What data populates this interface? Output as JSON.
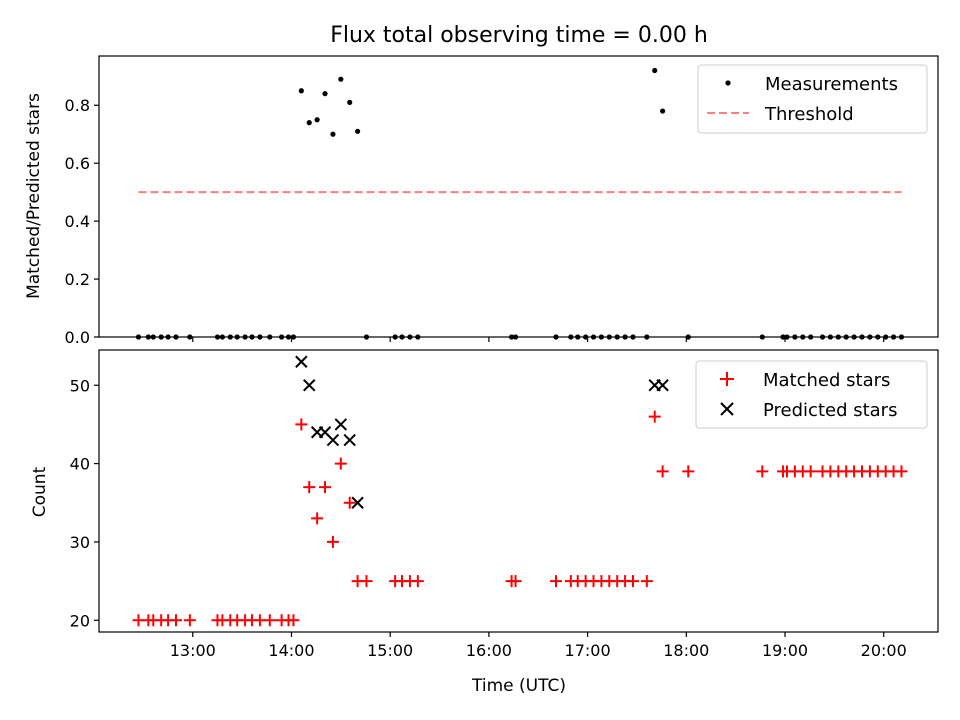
{
  "chart_data": [
    {
      "type": "scatter",
      "title": "Flux total observing time = 0.00 h",
      "xlabel": "",
      "ylabel": "Matched/Predicted stars",
      "ylim": [
        0,
        0.97
      ],
      "xlim": [
        12.05,
        20.55
      ],
      "y_ticks": [
        "0.0",
        "0.2",
        "0.4",
        "0.6",
        "0.8"
      ],
      "legend": "top-right",
      "series": [
        {
          "name": "Measurements",
          "marker": "dot",
          "color": "#000000",
          "points": [
            [
              12.45,
              0
            ],
            [
              12.55,
              0
            ],
            [
              12.6,
              0
            ],
            [
              12.68,
              0
            ],
            [
              12.75,
              0
            ],
            [
              12.83,
              0
            ],
            [
              12.97,
              0
            ],
            [
              13.25,
              0
            ],
            [
              13.3,
              0
            ],
            [
              13.38,
              0
            ],
            [
              13.45,
              0
            ],
            [
              13.53,
              0
            ],
            [
              13.6,
              0
            ],
            [
              13.68,
              0
            ],
            [
              13.78,
              0
            ],
            [
              13.9,
              0
            ],
            [
              13.97,
              0
            ],
            [
              14.02,
              0
            ],
            [
              14.1,
              0.85
            ],
            [
              14.18,
              0.74
            ],
            [
              14.26,
              0.75
            ],
            [
              14.34,
              0.84
            ],
            [
              14.42,
              0.7
            ],
            [
              14.5,
              0.89
            ],
            [
              14.59,
              0.81
            ],
            [
              14.67,
              0.71
            ],
            [
              14.76,
              0
            ],
            [
              15.05,
              0
            ],
            [
              15.12,
              0
            ],
            [
              15.2,
              0
            ],
            [
              15.28,
              0
            ],
            [
              16.23,
              0
            ],
            [
              16.27,
              0
            ],
            [
              16.68,
              0
            ],
            [
              16.83,
              0
            ],
            [
              16.9,
              0
            ],
            [
              16.98,
              0
            ],
            [
              17.06,
              0
            ],
            [
              17.14,
              0
            ],
            [
              17.22,
              0
            ],
            [
              17.3,
              0
            ],
            [
              17.38,
              0
            ],
            [
              17.46,
              0
            ],
            [
              17.6,
              0
            ],
            [
              17.68,
              0.92
            ],
            [
              17.76,
              0.78
            ],
            [
              18.02,
              0
            ],
            [
              18.77,
              0
            ],
            [
              18.98,
              0
            ],
            [
              19.02,
              0
            ],
            [
              19.1,
              0
            ],
            [
              19.18,
              0
            ],
            [
              19.26,
              0
            ],
            [
              19.38,
              0
            ],
            [
              19.46,
              0
            ],
            [
              19.54,
              0
            ],
            [
              19.62,
              0
            ],
            [
              19.7,
              0
            ],
            [
              19.78,
              0
            ],
            [
              19.86,
              0
            ],
            [
              19.94,
              0
            ],
            [
              20.02,
              0
            ],
            [
              20.1,
              0
            ],
            [
              20.18,
              0
            ]
          ]
        },
        {
          "name": "Threshold",
          "marker": "dashed-line",
          "color": "#ff7f7f",
          "points": [
            [
              12.45,
              0.5
            ],
            [
              20.18,
              0.5
            ]
          ]
        }
      ]
    },
    {
      "type": "scatter",
      "title": "",
      "xlabel": "Time (UTC)",
      "ylabel": "Count",
      "ylim": [
        18.5,
        54.5
      ],
      "xlim": [
        12.05,
        20.55
      ],
      "y_ticks": [
        "20",
        "30",
        "40",
        "50"
      ],
      "x_ticks": [
        "13:00",
        "14:00",
        "15:00",
        "16:00",
        "17:00",
        "18:00",
        "19:00",
        "20:00"
      ],
      "legend": "top-right",
      "series": [
        {
          "name": "Matched stars",
          "marker": "plus",
          "color": "#ff0000",
          "points": [
            [
              12.45,
              20
            ],
            [
              12.55,
              20
            ],
            [
              12.6,
              20
            ],
            [
              12.68,
              20
            ],
            [
              12.75,
              20
            ],
            [
              12.83,
              20
            ],
            [
              12.97,
              20
            ],
            [
              13.25,
              20
            ],
            [
              13.3,
              20
            ],
            [
              13.38,
              20
            ],
            [
              13.45,
              20
            ],
            [
              13.53,
              20
            ],
            [
              13.6,
              20
            ],
            [
              13.68,
              20
            ],
            [
              13.78,
              20
            ],
            [
              13.9,
              20
            ],
            [
              13.97,
              20
            ],
            [
              14.02,
              20
            ],
            [
              14.1,
              45
            ],
            [
              14.18,
              37
            ],
            [
              14.26,
              33
            ],
            [
              14.34,
              37
            ],
            [
              14.42,
              30
            ],
            [
              14.5,
              40
            ],
            [
              14.59,
              35
            ],
            [
              14.67,
              25
            ],
            [
              14.76,
              25
            ],
            [
              15.05,
              25
            ],
            [
              15.12,
              25
            ],
            [
              15.2,
              25
            ],
            [
              15.28,
              25
            ],
            [
              16.23,
              25
            ],
            [
              16.27,
              25
            ],
            [
              16.68,
              25
            ],
            [
              16.83,
              25
            ],
            [
              16.9,
              25
            ],
            [
              16.98,
              25
            ],
            [
              17.06,
              25
            ],
            [
              17.14,
              25
            ],
            [
              17.22,
              25
            ],
            [
              17.3,
              25
            ],
            [
              17.38,
              25
            ],
            [
              17.46,
              25
            ],
            [
              17.6,
              25
            ],
            [
              17.68,
              46
            ],
            [
              17.76,
              39
            ],
            [
              18.02,
              39
            ],
            [
              18.77,
              39
            ],
            [
              18.98,
              39
            ],
            [
              19.02,
              39
            ],
            [
              19.1,
              39
            ],
            [
              19.18,
              39
            ],
            [
              19.26,
              39
            ],
            [
              19.38,
              39
            ],
            [
              19.46,
              39
            ],
            [
              19.54,
              39
            ],
            [
              19.62,
              39
            ],
            [
              19.7,
              39
            ],
            [
              19.78,
              39
            ],
            [
              19.86,
              39
            ],
            [
              19.94,
              39
            ],
            [
              20.02,
              39
            ],
            [
              20.1,
              39
            ],
            [
              20.18,
              39
            ]
          ]
        },
        {
          "name": "Predicted stars",
          "marker": "x",
          "color": "#000000",
          "points": [
            [
              14.1,
              53
            ],
            [
              14.18,
              50
            ],
            [
              14.26,
              44
            ],
            [
              14.34,
              44
            ],
            [
              14.42,
              43
            ],
            [
              14.5,
              45
            ],
            [
              14.59,
              43
            ],
            [
              14.67,
              35
            ],
            [
              17.68,
              50
            ],
            [
              17.76,
              50
            ]
          ]
        }
      ]
    }
  ]
}
